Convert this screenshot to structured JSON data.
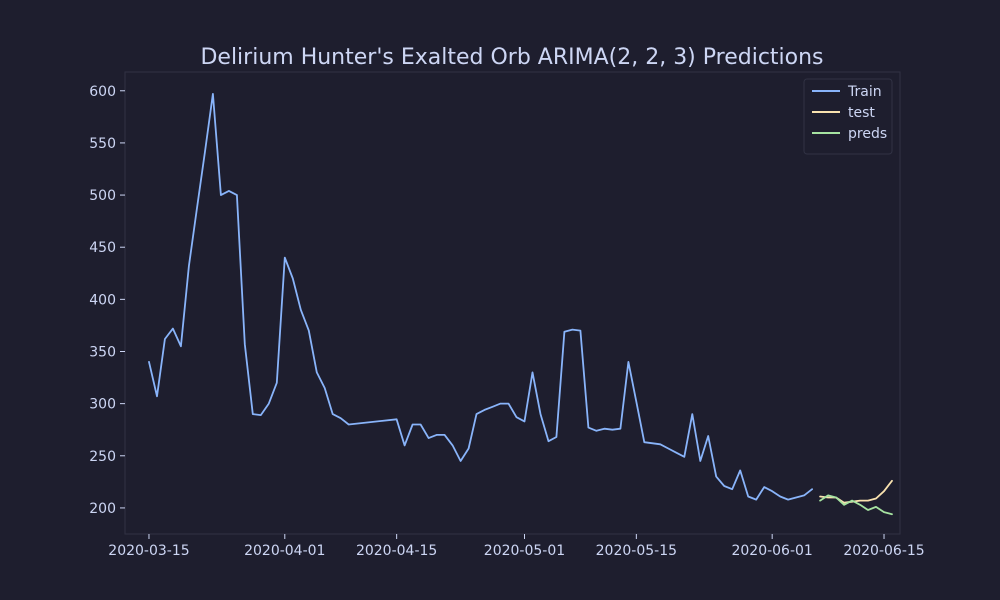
{
  "chart_data": {
    "type": "line",
    "title": "Delirium Hunter's Exalted Orb ARIMA(2, 2, 3) Predictions",
    "xlabel": "",
    "ylabel": "",
    "x_axis": "date",
    "xlim": [
      "2020-03-12",
      "2020-06-17"
    ],
    "ylim": [
      175,
      618
    ],
    "x_ticks": [
      "2020-03-15",
      "2020-04-01",
      "2020-04-15",
      "2020-05-01",
      "2020-05-15",
      "2020-06-01",
      "2020-06-15"
    ],
    "y_ticks": [
      200,
      250,
      300,
      350,
      400,
      450,
      500,
      550,
      600
    ],
    "grid": false,
    "legend_position": "top-right",
    "colors": {
      "background": "#1e1e2e",
      "axes_background": "#1e1e2e",
      "frame": "#313244",
      "text": "#cdd6f4"
    },
    "series": [
      {
        "name": "Train",
        "color": "#89b4fa",
        "points": [
          [
            "2020-03-15",
            340
          ],
          [
            "2020-03-16",
            307
          ],
          [
            "2020-03-17",
            362
          ],
          [
            "2020-03-18",
            372
          ],
          [
            "2020-03-19",
            355
          ],
          [
            "2020-03-20",
            432
          ],
          [
            "2020-03-21",
            487
          ],
          [
            "2020-03-22",
            541
          ],
          [
            "2020-03-23",
            597
          ],
          [
            "2020-03-24",
            500
          ],
          [
            "2020-03-25",
            504
          ],
          [
            "2020-03-26",
            500
          ],
          [
            "2020-03-27",
            357
          ],
          [
            "2020-03-28",
            290
          ],
          [
            "2020-03-29",
            289
          ],
          [
            "2020-03-30",
            300
          ],
          [
            "2020-03-31",
            320
          ],
          [
            "2020-04-01",
            440
          ],
          [
            "2020-04-02",
            420
          ],
          [
            "2020-04-03",
            390
          ],
          [
            "2020-04-04",
            370
          ],
          [
            "2020-04-05",
            330
          ],
          [
            "2020-04-06",
            315
          ],
          [
            "2020-04-07",
            290
          ],
          [
            "2020-04-08",
            286
          ],
          [
            "2020-04-09",
            280
          ],
          [
            "2020-04-15",
            285
          ],
          [
            "2020-04-16",
            260
          ],
          [
            "2020-04-17",
            280
          ],
          [
            "2020-04-18",
            280
          ],
          [
            "2020-04-19",
            267
          ],
          [
            "2020-04-20",
            270
          ],
          [
            "2020-04-21",
            270
          ],
          [
            "2020-04-22",
            260
          ],
          [
            "2020-04-23",
            245
          ],
          [
            "2020-04-24",
            257
          ],
          [
            "2020-04-25",
            290
          ],
          [
            "2020-04-26",
            294
          ],
          [
            "2020-04-27",
            297
          ],
          [
            "2020-04-28",
            300
          ],
          [
            "2020-04-29",
            300
          ],
          [
            "2020-04-30",
            287
          ],
          [
            "2020-05-01",
            283
          ],
          [
            "2020-05-02",
            330
          ],
          [
            "2020-05-03",
            290
          ],
          [
            "2020-05-04",
            264
          ],
          [
            "2020-05-05",
            268
          ],
          [
            "2020-05-06",
            369
          ],
          [
            "2020-05-07",
            371
          ],
          [
            "2020-05-08",
            370
          ],
          [
            "2020-05-09",
            277
          ],
          [
            "2020-05-10",
            274
          ],
          [
            "2020-05-11",
            276
          ],
          [
            "2020-05-12",
            275
          ],
          [
            "2020-05-13",
            276
          ],
          [
            "2020-05-14",
            340
          ],
          [
            "2020-05-15",
            302
          ],
          [
            "2020-05-16",
            263
          ],
          [
            "2020-05-18",
            261
          ],
          [
            "2020-05-19",
            257
          ],
          [
            "2020-05-20",
            253
          ],
          [
            "2020-05-21",
            249
          ],
          [
            "2020-05-22",
            290
          ],
          [
            "2020-05-23",
            245
          ],
          [
            "2020-05-24",
            269
          ],
          [
            "2020-05-25",
            230
          ],
          [
            "2020-05-26",
            221
          ],
          [
            "2020-05-27",
            218
          ],
          [
            "2020-05-28",
            236
          ],
          [
            "2020-05-29",
            211
          ],
          [
            "2020-05-30",
            208
          ],
          [
            "2020-05-31",
            220
          ],
          [
            "2020-06-01",
            216
          ],
          [
            "2020-06-02",
            211
          ],
          [
            "2020-06-03",
            208
          ],
          [
            "2020-06-04",
            210
          ],
          [
            "2020-06-05",
            212
          ],
          [
            "2020-06-06",
            218
          ]
        ]
      },
      {
        "name": "test",
        "color": "#f9e2af",
        "points": [
          [
            "2020-06-07",
            211
          ],
          [
            "2020-06-08",
            210
          ],
          [
            "2020-06-09",
            210
          ],
          [
            "2020-06-10",
            205
          ],
          [
            "2020-06-11",
            206
          ],
          [
            "2020-06-12",
            207
          ],
          [
            "2020-06-13",
            207
          ],
          [
            "2020-06-14",
            209
          ],
          [
            "2020-06-15",
            216
          ],
          [
            "2020-06-16",
            226
          ]
        ]
      },
      {
        "name": "preds",
        "color": "#a6e3a1",
        "points": [
          [
            "2020-06-07",
            207
          ],
          [
            "2020-06-08",
            212
          ],
          [
            "2020-06-09",
            210
          ],
          [
            "2020-06-10",
            203
          ],
          [
            "2020-06-11",
            207
          ],
          [
            "2020-06-12",
            203
          ],
          [
            "2020-06-13",
            198
          ],
          [
            "2020-06-14",
            201
          ],
          [
            "2020-06-15",
            196
          ],
          [
            "2020-06-16",
            194
          ]
        ]
      }
    ]
  }
}
